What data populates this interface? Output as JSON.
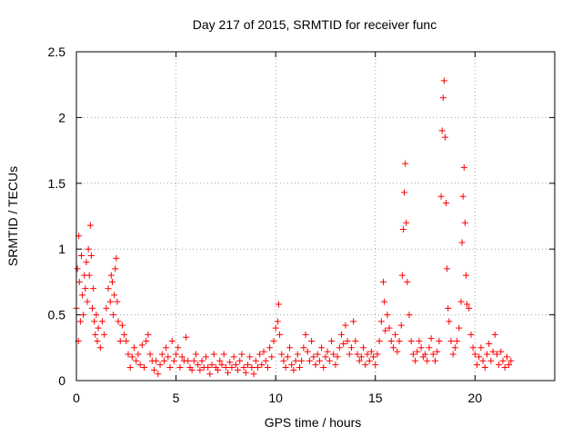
{
  "chart_data": {
    "type": "scatter",
    "title": "Day 217 of 2015, SRMTID for receiver func",
    "xlabel": "GPS time / hours",
    "ylabel": "SRMTID / TECUs",
    "xlim": [
      0,
      24
    ],
    "ylim": [
      0,
      2.5
    ],
    "xticks": [
      0,
      5,
      10,
      15,
      20
    ],
    "xtick_labels": [
      "0",
      "5",
      "10",
      "15",
      "20"
    ],
    "yticks": [
      0,
      0.5,
      1,
      1.5,
      2,
      2.5
    ],
    "ytick_labels": [
      "0",
      "0.5",
      "1",
      "1.5",
      "2",
      "2.5"
    ],
    "grid": true,
    "marker": "+",
    "series": [
      {
        "name": "SRMTID",
        "color": "#ff0000",
        "points": [
          [
            0.0,
            0.55
          ],
          [
            0.05,
            0.85
          ],
          [
            0.1,
            0.3
          ],
          [
            0.12,
            1.1
          ],
          [
            0.15,
            0.75
          ],
          [
            0.2,
            0.45
          ],
          [
            0.25,
            0.95
          ],
          [
            0.3,
            0.65
          ],
          [
            0.35,
            0.5
          ],
          [
            0.4,
            0.8
          ],
          [
            0.45,
            0.7
          ],
          [
            0.5,
            0.9
          ],
          [
            0.55,
            0.6
          ],
          [
            0.6,
            1.0
          ],
          [
            0.65,
            0.8
          ],
          [
            0.7,
            1.18
          ],
          [
            0.75,
            0.95
          ],
          [
            0.8,
            0.55
          ],
          [
            0.85,
            0.7
          ],
          [
            0.9,
            0.45
          ],
          [
            0.95,
            0.35
          ],
          [
            1.0,
            0.5
          ],
          [
            1.05,
            0.3
          ],
          [
            1.1,
            0.4
          ],
          [
            1.2,
            0.25
          ],
          [
            1.3,
            0.45
          ],
          [
            1.4,
            0.35
          ],
          [
            1.5,
            0.55
          ],
          [
            1.6,
            0.7
          ],
          [
            1.7,
            0.6
          ],
          [
            1.75,
            0.8
          ],
          [
            1.8,
            0.75
          ],
          [
            1.85,
            0.5
          ],
          [
            1.9,
            0.65
          ],
          [
            1.95,
            0.85
          ],
          [
            2.0,
            0.93
          ],
          [
            2.05,
            0.6
          ],
          [
            2.1,
            0.45
          ],
          [
            2.2,
            0.3
          ],
          [
            2.3,
            0.42
          ],
          [
            2.4,
            0.35
          ],
          [
            2.5,
            0.3
          ],
          [
            2.6,
            0.2
          ],
          [
            2.7,
            0.1
          ],
          [
            2.8,
            0.18
          ],
          [
            2.9,
            0.25
          ],
          [
            3.0,
            0.15
          ],
          [
            3.1,
            0.2
          ],
          [
            3.2,
            0.12
          ],
          [
            3.3,
            0.27
          ],
          [
            3.4,
            0.1
          ],
          [
            3.5,
            0.3
          ],
          [
            3.6,
            0.35
          ],
          [
            3.7,
            0.2
          ],
          [
            3.8,
            0.15
          ],
          [
            3.9,
            0.08
          ],
          [
            4.0,
            0.15
          ],
          [
            4.1,
            0.05
          ],
          [
            4.2,
            0.12
          ],
          [
            4.3,
            0.2
          ],
          [
            4.4,
            0.15
          ],
          [
            4.5,
            0.25
          ],
          [
            4.6,
            0.18
          ],
          [
            4.7,
            0.1
          ],
          [
            4.8,
            0.3
          ],
          [
            4.9,
            0.15
          ],
          [
            5.0,
            0.2
          ],
          [
            5.1,
            0.25
          ],
          [
            5.2,
            0.1
          ],
          [
            5.3,
            0.18
          ],
          [
            5.4,
            0.15
          ],
          [
            5.5,
            0.33
          ],
          [
            5.6,
            0.15
          ],
          [
            5.7,
            0.1
          ],
          [
            5.8,
            0.08
          ],
          [
            5.9,
            0.15
          ],
          [
            6.0,
            0.2
          ],
          [
            6.1,
            0.12
          ],
          [
            6.2,
            0.08
          ],
          [
            6.3,
            0.15
          ],
          [
            6.4,
            0.1
          ],
          [
            6.5,
            0.18
          ],
          [
            6.6,
            0.1
          ],
          [
            6.7,
            0.05
          ],
          [
            6.8,
            0.12
          ],
          [
            6.9,
            0.2
          ],
          [
            7.0,
            0.1
          ],
          [
            7.1,
            0.08
          ],
          [
            7.2,
            0.15
          ],
          [
            7.3,
            0.12
          ],
          [
            7.4,
            0.2
          ],
          [
            7.5,
            0.1
          ],
          [
            7.6,
            0.06
          ],
          [
            7.7,
            0.14
          ],
          [
            7.8,
            0.1
          ],
          [
            7.9,
            0.18
          ],
          [
            8.0,
            0.12
          ],
          [
            8.1,
            0.08
          ],
          [
            8.2,
            0.15
          ],
          [
            8.3,
            0.2
          ],
          [
            8.4,
            0.1
          ],
          [
            8.5,
            0.06
          ],
          [
            8.6,
            0.12
          ],
          [
            8.7,
            0.18
          ],
          [
            8.8,
            0.1
          ],
          [
            8.9,
            0.05
          ],
          [
            9.0,
            0.15
          ],
          [
            9.1,
            0.1
          ],
          [
            9.2,
            0.2
          ],
          [
            9.3,
            0.12
          ],
          [
            9.4,
            0.22
          ],
          [
            9.5,
            0.15
          ],
          [
            9.6,
            0.1
          ],
          [
            9.7,
            0.25
          ],
          [
            9.8,
            0.18
          ],
          [
            9.9,
            0.3
          ],
          [
            10.0,
            0.4
          ],
          [
            10.1,
            0.45
          ],
          [
            10.15,
            0.58
          ],
          [
            10.2,
            0.35
          ],
          [
            10.3,
            0.2
          ],
          [
            10.4,
            0.15
          ],
          [
            10.5,
            0.1
          ],
          [
            10.6,
            0.18
          ],
          [
            10.7,
            0.25
          ],
          [
            10.8,
            0.12
          ],
          [
            10.9,
            0.08
          ],
          [
            11.0,
            0.15
          ],
          [
            11.1,
            0.2
          ],
          [
            11.2,
            0.1
          ],
          [
            11.3,
            0.15
          ],
          [
            11.4,
            0.25
          ],
          [
            11.5,
            0.35
          ],
          [
            11.6,
            0.22
          ],
          [
            11.7,
            0.15
          ],
          [
            11.8,
            0.3
          ],
          [
            11.9,
            0.18
          ],
          [
            12.0,
            0.12
          ],
          [
            12.1,
            0.2
          ],
          [
            12.2,
            0.15
          ],
          [
            12.3,
            0.25
          ],
          [
            12.4,
            0.1
          ],
          [
            12.5,
            0.18
          ],
          [
            12.6,
            0.22
          ],
          [
            12.7,
            0.15
          ],
          [
            12.8,
            0.3
          ],
          [
            12.9,
            0.2
          ],
          [
            13.0,
            0.12
          ],
          [
            13.1,
            0.18
          ],
          [
            13.2,
            0.25
          ],
          [
            13.3,
            0.35
          ],
          [
            13.4,
            0.28
          ],
          [
            13.5,
            0.42
          ],
          [
            13.6,
            0.3
          ],
          [
            13.7,
            0.2
          ],
          [
            13.8,
            0.25
          ],
          [
            13.9,
            0.45
          ],
          [
            14.0,
            0.3
          ],
          [
            14.1,
            0.2
          ],
          [
            14.2,
            0.15
          ],
          [
            14.3,
            0.18
          ],
          [
            14.4,
            0.25
          ],
          [
            14.5,
            0.12
          ],
          [
            14.6,
            0.2
          ],
          [
            14.7,
            0.15
          ],
          [
            14.8,
            0.22
          ],
          [
            14.9,
            0.18
          ],
          [
            15.0,
            0.12
          ],
          [
            15.1,
            0.2
          ],
          [
            15.2,
            0.3
          ],
          [
            15.3,
            0.45
          ],
          [
            15.4,
            0.75
          ],
          [
            15.45,
            0.6
          ],
          [
            15.5,
            0.38
          ],
          [
            15.6,
            0.5
          ],
          [
            15.7,
            0.4
          ],
          [
            15.8,
            0.3
          ],
          [
            15.9,
            0.25
          ],
          [
            16.0,
            0.35
          ],
          [
            16.1,
            0.22
          ],
          [
            16.2,
            0.3
          ],
          [
            16.3,
            0.42
          ],
          [
            16.35,
            0.8
          ],
          [
            16.4,
            1.15
          ],
          [
            16.45,
            1.43
          ],
          [
            16.5,
            1.65
          ],
          [
            16.55,
            1.2
          ],
          [
            16.6,
            0.75
          ],
          [
            16.7,
            0.5
          ],
          [
            16.8,
            0.3
          ],
          [
            16.9,
            0.2
          ],
          [
            17.0,
            0.15
          ],
          [
            17.1,
            0.22
          ],
          [
            17.2,
            0.3
          ],
          [
            17.3,
            0.25
          ],
          [
            17.4,
            0.18
          ],
          [
            17.5,
            0.2
          ],
          [
            17.6,
            0.15
          ],
          [
            17.7,
            0.25
          ],
          [
            17.8,
            0.32
          ],
          [
            17.9,
            0.2
          ],
          [
            18.0,
            0.15
          ],
          [
            18.1,
            0.22
          ],
          [
            18.2,
            0.3
          ],
          [
            18.3,
            1.4
          ],
          [
            18.35,
            1.9
          ],
          [
            18.4,
            2.15
          ],
          [
            18.45,
            2.28
          ],
          [
            18.5,
            1.85
          ],
          [
            18.55,
            1.35
          ],
          [
            18.6,
            0.85
          ],
          [
            18.65,
            0.55
          ],
          [
            18.7,
            0.45
          ],
          [
            18.8,
            0.3
          ],
          [
            18.9,
            0.2
          ],
          [
            19.0,
            0.25
          ],
          [
            19.1,
            0.3
          ],
          [
            19.2,
            0.4
          ],
          [
            19.3,
            0.6
          ],
          [
            19.35,
            1.05
          ],
          [
            19.4,
            1.4
          ],
          [
            19.45,
            1.62
          ],
          [
            19.5,
            1.2
          ],
          [
            19.55,
            0.8
          ],
          [
            19.6,
            0.58
          ],
          [
            19.7,
            0.55
          ],
          [
            19.8,
            0.35
          ],
          [
            19.9,
            0.25
          ],
          [
            20.0,
            0.2
          ],
          [
            20.1,
            0.12
          ],
          [
            20.2,
            0.18
          ],
          [
            20.3,
            0.25
          ],
          [
            20.4,
            0.15
          ],
          [
            20.5,
            0.1
          ],
          [
            20.6,
            0.2
          ],
          [
            20.7,
            0.28
          ],
          [
            20.8,
            0.15
          ],
          [
            20.9,
            0.22
          ],
          [
            21.0,
            0.35
          ],
          [
            21.1,
            0.2
          ],
          [
            21.2,
            0.12
          ],
          [
            21.3,
            0.22
          ],
          [
            21.4,
            0.15
          ],
          [
            21.5,
            0.1
          ],
          [
            21.6,
            0.18
          ],
          [
            21.7,
            0.12
          ],
          [
            21.8,
            0.15
          ]
        ]
      }
    ]
  }
}
